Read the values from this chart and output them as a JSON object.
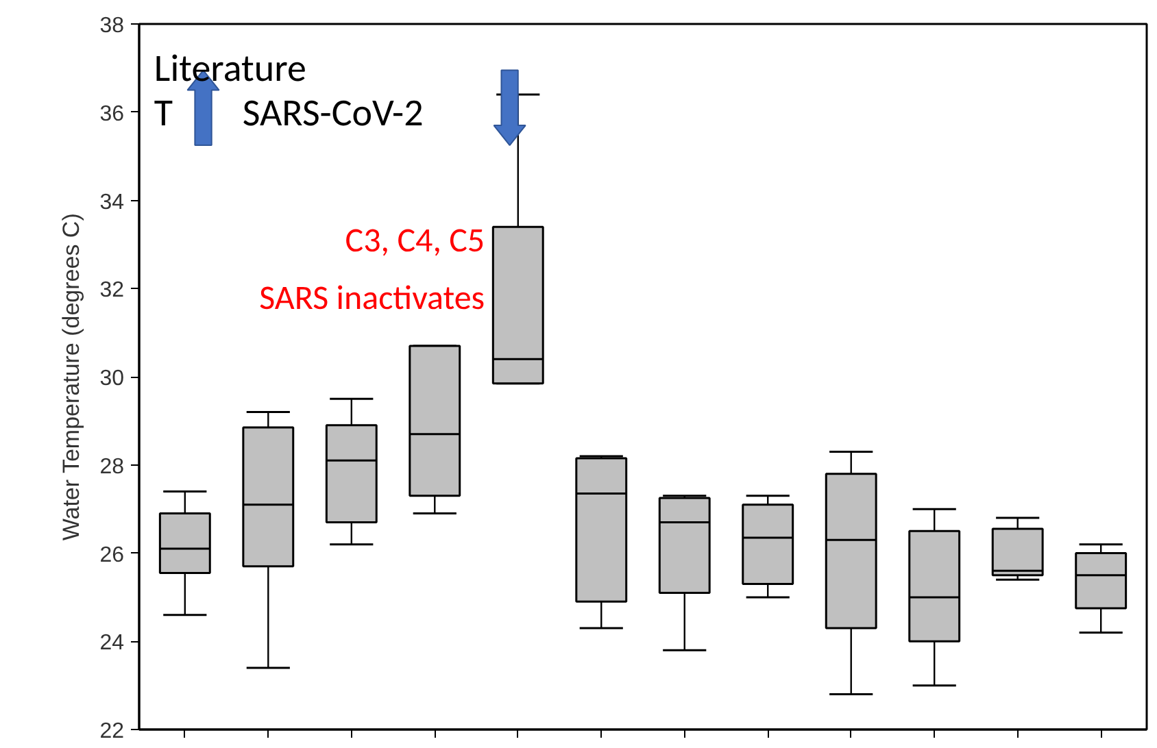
{
  "chart_data": {
    "type": "box",
    "ylabel": "Water Temperature (degrees C)",
    "categories": [
      null,
      null,
      null,
      null,
      null,
      null,
      null,
      null,
      null,
      null,
      null,
      null
    ],
    "color": "#c0c0c0",
    "boxes": [
      {
        "low": 24.6,
        "q1": 25.55,
        "median": 26.1,
        "q3": 26.9,
        "high": 27.4
      },
      {
        "low": 23.4,
        "q1": 25.7,
        "median": 27.1,
        "q3": 28.85,
        "high": 29.2
      },
      {
        "low": 26.2,
        "q1": 26.7,
        "median": 28.1,
        "q3": 28.9,
        "high": 29.5
      },
      {
        "low": 26.9,
        "q1": 27.3,
        "median": 28.7,
        "q3": 30.7,
        "high": 30.7
      },
      {
        "low": 29.85,
        "q1": 29.85,
        "median": 30.4,
        "q3": 33.4,
        "high": 36.4
      },
      {
        "low": 24.3,
        "q1": 24.9,
        "median": 27.35,
        "q3": 28.15,
        "high": 28.2
      },
      {
        "low": 23.8,
        "q1": 25.1,
        "median": 26.7,
        "q3": 27.25,
        "high": 27.3
      },
      {
        "low": 25.0,
        "q1": 25.3,
        "median": 26.35,
        "q3": 27.1,
        "high": 27.3
      },
      {
        "low": 22.8,
        "q1": 24.3,
        "median": 26.3,
        "q3": 27.8,
        "high": 28.3
      },
      {
        "low": 23.0,
        "q1": 24.0,
        "median": 25.0,
        "q3": 26.5,
        "high": 27.0
      },
      {
        "low": 25.4,
        "q1": 25.5,
        "median": 25.6,
        "q3": 26.55,
        "high": 26.8
      },
      {
        "low": 24.2,
        "q1": 24.75,
        "median": 25.5,
        "q3": 26.0,
        "high": 26.2
      }
    ],
    "ylim": [
      22,
      38
    ],
    "yticks": [
      22,
      24,
      26,
      28,
      30,
      32,
      34,
      36,
      38
    ],
    "tick_labels": "y",
    "grid": false,
    "annotations": [
      "Literature",
      "T",
      "SARS-CoV-2",
      "C3, C4, C5",
      "SARS inactivates"
    ]
  }
}
